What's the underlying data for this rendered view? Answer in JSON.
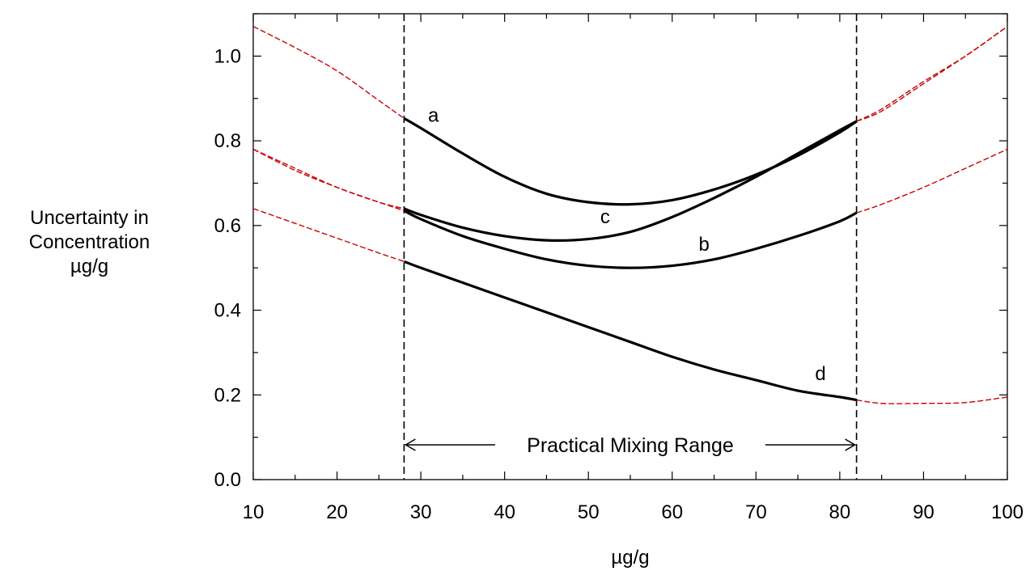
{
  "chart_data": {
    "type": "line",
    "ylabel_lines": [
      "Uncertainty in",
      "Concentration",
      "µg/g"
    ],
    "xlabel": "µg/g",
    "xlim": [
      10,
      100
    ],
    "ylim": [
      0.0,
      1.1
    ],
    "x_ticks": [
      10,
      20,
      30,
      40,
      50,
      60,
      70,
      80,
      90,
      100
    ],
    "y_ticks": [
      "0.0",
      "0.2",
      "0.4",
      "0.6",
      "0.8",
      "1.0"
    ],
    "practical_range": {
      "x_min": 28,
      "x_max": 82,
      "label": "Practical Mixing Range"
    },
    "colors": {
      "in_range": "#000000",
      "extrapolated": "#cc0000"
    },
    "series": [
      {
        "name": "a",
        "x": [
          10,
          15,
          20,
          25,
          28,
          30,
          35,
          40,
          45,
          50,
          55,
          60,
          65,
          70,
          75,
          80,
          82,
          85,
          90,
          95,
          100
        ],
        "y": [
          1.07,
          1.02,
          0.965,
          0.895,
          0.853,
          0.83,
          0.77,
          0.715,
          0.675,
          0.655,
          0.65,
          0.66,
          0.685,
          0.72,
          0.765,
          0.82,
          0.846,
          0.87,
          0.935,
          1.0,
          1.07
        ],
        "label_x": 31.5,
        "label_y": 0.845
      },
      {
        "name": "b",
        "x": [
          10,
          15,
          20,
          25,
          28,
          30,
          35,
          40,
          45,
          50,
          55,
          60,
          65,
          70,
          75,
          80,
          82,
          85,
          90,
          95,
          100
        ],
        "y": [
          0.78,
          0.73,
          0.69,
          0.655,
          0.635,
          0.615,
          0.575,
          0.545,
          0.52,
          0.505,
          0.5,
          0.505,
          0.52,
          0.545,
          0.575,
          0.61,
          0.63,
          0.65,
          0.69,
          0.735,
          0.78
        ],
        "label_x": 63.8,
        "label_y": 0.54
      },
      {
        "name": "c",
        "x": [
          10,
          15,
          20,
          25,
          28,
          30,
          35,
          40,
          45,
          50,
          55,
          60,
          65,
          70,
          75,
          80,
          82,
          85,
          90,
          95,
          100
        ],
        "y": [
          0.78,
          0.735,
          0.69,
          0.655,
          0.64,
          0.625,
          0.595,
          0.575,
          0.565,
          0.568,
          0.585,
          0.62,
          0.665,
          0.715,
          0.77,
          0.825,
          0.846,
          0.875,
          0.94,
          1.0,
          1.07
        ],
        "label_x": 52.0,
        "label_y": 0.605
      },
      {
        "name": "d",
        "x": [
          10,
          15,
          20,
          25,
          28,
          30,
          35,
          40,
          45,
          50,
          55,
          60,
          65,
          70,
          75,
          80,
          82,
          85,
          90,
          95,
          100
        ],
        "y": [
          0.64,
          0.605,
          0.57,
          0.535,
          0.515,
          0.5,
          0.465,
          0.43,
          0.395,
          0.36,
          0.325,
          0.29,
          0.26,
          0.235,
          0.21,
          0.195,
          0.188,
          0.18,
          0.18,
          0.182,
          0.195
        ],
        "label_x": 77.7,
        "label_y": 0.235
      }
    ]
  }
}
